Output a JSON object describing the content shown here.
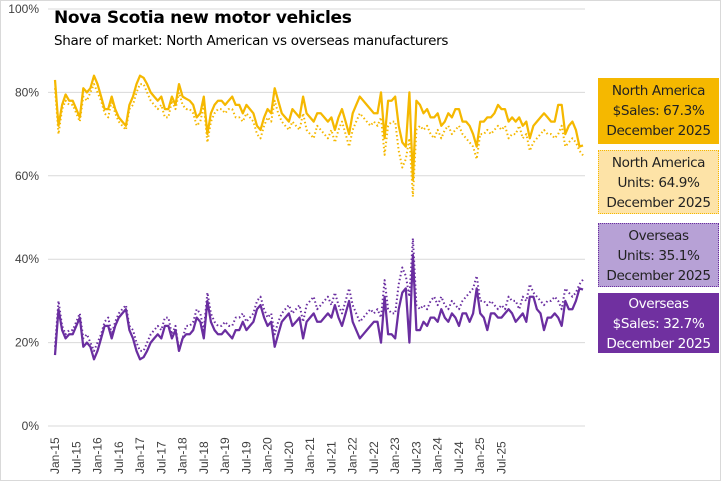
{
  "chart_data": {
    "type": "line",
    "title": "Nova Scotia new motor vehicles",
    "subtitle": "Share of market: North American vs overseas manufacturers",
    "xlabel": "",
    "ylabel": "",
    "ylim": [
      0,
      100
    ],
    "yticks": [
      "0%",
      "20%",
      "40%",
      "60%",
      "80%",
      "100%"
    ],
    "ytick_values": [
      0,
      20,
      40,
      60,
      80,
      100
    ],
    "grid": true,
    "x_start": "Jan-15",
    "x_end": "Dec-25",
    "xtick_labels": [
      "Jan-15",
      "Jul-15",
      "Jan-16",
      "Jul-16",
      "Jan-17",
      "Jul-17",
      "Jan-18",
      "Jul-18",
      "Jan-19",
      "Jul-19",
      "Jan-20",
      "Jul-20",
      "Jan-21",
      "Jul-21",
      "Jan-22",
      "Jul-22",
      "Jan-23",
      "Jul-23",
      "Jan-24",
      "Jul-24",
      "Jan-25",
      "Jul-25"
    ],
    "series": [
      {
        "name": "North America $Sales",
        "style": "solid",
        "color": "#f5b800",
        "values": [
          83,
          72,
          77,
          79.5,
          78,
          78,
          76,
          74,
          81,
          80,
          81,
          84,
          82,
          79,
          76,
          76,
          79,
          76,
          74,
          73,
          72,
          77,
          79,
          82,
          84,
          83.5,
          82,
          80,
          79,
          78,
          79,
          76,
          76,
          79,
          77,
          82,
          79,
          78.5,
          78,
          77,
          74,
          75,
          79,
          70,
          75,
          77,
          78,
          78,
          77,
          78,
          79,
          77,
          77,
          75,
          77,
          76,
          75,
          72,
          71,
          74,
          76,
          75,
          81,
          78,
          75,
          74,
          73,
          76,
          75,
          74,
          79,
          75,
          74,
          73,
          75,
          75,
          74,
          73,
          74,
          71,
          74,
          76,
          73,
          70,
          75,
          77,
          79,
          78,
          77,
          76,
          75,
          75,
          80,
          69,
          78,
          78,
          79,
          72,
          68,
          67,
          80,
          59,
          78,
          77,
          75,
          76,
          74,
          74,
          75,
          72,
          73,
          75,
          74,
          76,
          76,
          73,
          73,
          72,
          70,
          67,
          73,
          73,
          74,
          74,
          75,
          77,
          76,
          76,
          73,
          74,
          73,
          74,
          72,
          73,
          69,
          72,
          73,
          74,
          75,
          74,
          73,
          73,
          77,
          77,
          70,
          72,
          73,
          71,
          67,
          67.3
        ]
      },
      {
        "name": "North America Units",
        "style": "dotted",
        "color": "#f5b800",
        "values": [
          81,
          70,
          76,
          78,
          77,
          77,
          75,
          73,
          79,
          78,
          80,
          82,
          80,
          78,
          75,
          74,
          78,
          75,
          73,
          72,
          71,
          76,
          77,
          80,
          82,
          82,
          80,
          78,
          77,
          76,
          77,
          74,
          74,
          78,
          76,
          80,
          77,
          76,
          76,
          75,
          72,
          73,
          77,
          68,
          73,
          75,
          76,
          76,
          75,
          76,
          76,
          74,
          74,
          73,
          75,
          74,
          73,
          70,
          69,
          72,
          74,
          73,
          78,
          75,
          73,
          72,
          71,
          73,
          72,
          71,
          75,
          71,
          70,
          69,
          72,
          71,
          70,
          69,
          71,
          68,
          71,
          73,
          70,
          67,
          71,
          73,
          75,
          74,
          73,
          72,
          73,
          72,
          74,
          65,
          72,
          73,
          73,
          66,
          62,
          64,
          69,
          55,
          71,
          72,
          71,
          72,
          70,
          69,
          71,
          69,
          71,
          72,
          70,
          71,
          72,
          70,
          69,
          68,
          67,
          64,
          70,
          70,
          71,
          70,
          71,
          72,
          71,
          72,
          69,
          70,
          70,
          72,
          69,
          70,
          66,
          68,
          69,
          70,
          71,
          70,
          70,
          69,
          70,
          72,
          67,
          68,
          69,
          68,
          66,
          64.9
        ]
      },
      {
        "name": "Overseas Units",
        "style": "dotted",
        "color": "#6a2ea0",
        "values": [
          19,
          30,
          24,
          22,
          23,
          23,
          25,
          27,
          21,
          22,
          20,
          18,
          20,
          22,
          25,
          26,
          22,
          25,
          27,
          28,
          29,
          24,
          23,
          20,
          18,
          18,
          20,
          22,
          23,
          24,
          23,
          26,
          26,
          22,
          24,
          18,
          21,
          24,
          24,
          25,
          28,
          27,
          23,
          32,
          27,
          25,
          24,
          24,
          25,
          24,
          24,
          26,
          26,
          27,
          25,
          26,
          27,
          30,
          31,
          28,
          26,
          27,
          22,
          25,
          27,
          28,
          29,
          27,
          28,
          29,
          25,
          29,
          30,
          31,
          28,
          29,
          30,
          31,
          29,
          32,
          29,
          27,
          30,
          33,
          29,
          27,
          25,
          26,
          27,
          28,
          27,
          28,
          26,
          35,
          28,
          27,
          27,
          34,
          38,
          36,
          31,
          45,
          29,
          28,
          29,
          28,
          30,
          31,
          29,
          31,
          29,
          28,
          30,
          29,
          28,
          30,
          31,
          32,
          33,
          36,
          30,
          30,
          29,
          30,
          29,
          28,
          29,
          28,
          31,
          30,
          30,
          28,
          31,
          30,
          34,
          32,
          31,
          30,
          29,
          30,
          30,
          31,
          30,
          28,
          33,
          32,
          31,
          32,
          34,
          35.1
        ]
      },
      {
        "name": "Overseas $Sales",
        "style": "solid",
        "color": "#6a2ea0",
        "values": [
          17,
          28,
          23,
          21,
          22,
          22,
          24,
          26,
          19,
          20,
          19,
          16,
          18,
          21,
          24,
          24,
          21,
          24,
          26,
          27,
          28,
          23,
          21,
          18,
          16,
          16.5,
          18,
          20,
          21,
          22,
          21,
          24,
          24,
          21,
          23,
          18,
          21,
          22,
          22,
          23,
          26,
          25,
          21,
          30,
          25,
          23,
          22,
          22,
          23,
          22,
          21,
          23,
          23,
          25,
          23,
          24,
          25,
          28,
          29,
          26,
          24,
          25,
          19,
          22,
          25,
          26,
          27,
          24,
          25,
          26,
          21,
          25,
          26,
          27,
          25,
          25,
          26,
          27,
          26,
          29,
          26,
          24,
          27,
          30,
          25,
          23,
          21,
          22,
          23,
          24,
          25,
          25,
          20,
          31,
          22,
          22,
          21,
          28,
          32,
          33,
          20,
          41,
          23,
          23,
          25,
          24,
          26,
          26,
          25,
          28,
          26,
          25,
          27,
          26,
          24,
          27,
          27,
          25,
          27,
          33,
          27,
          26,
          23,
          27,
          27,
          26,
          26,
          27,
          28,
          27,
          25,
          26,
          27,
          25,
          31,
          31,
          28,
          27,
          23,
          26,
          26,
          27,
          26,
          24,
          30,
          28,
          28,
          30,
          33,
          32.7
        ]
      }
    ],
    "annotations": [
      {
        "id": "na-sales",
        "lines": [
          "North America",
          "$Sales: 67.3%",
          "December 2025"
        ],
        "fill": "#f5b800"
      },
      {
        "id": "na-units",
        "lines": [
          "North America",
          "Units: 64.9%",
          "December 2025"
        ],
        "fill": "#fde3a7"
      },
      {
        "id": "os-units",
        "lines": [
          "Overseas",
          "Units: 35.1%",
          "December 2025"
        ],
        "fill": "#b7a1d6"
      },
      {
        "id": "os-sales",
        "lines": [
          "Overseas",
          "$Sales: 32.7%",
          "December 2025"
        ],
        "fill": "#7030a0"
      }
    ]
  }
}
